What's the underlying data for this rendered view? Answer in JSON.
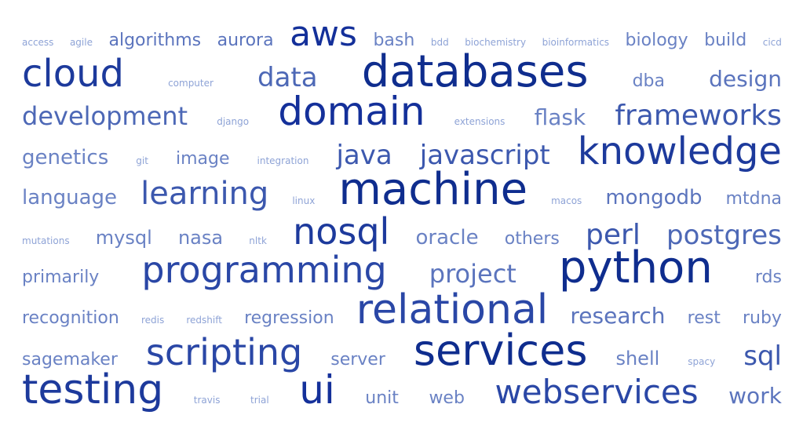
{
  "lines": [
    {
      "words": [
        {
          "text": "access",
          "size": 12,
          "color": "#8ea3d6"
        },
        {
          "text": "agile",
          "size": 12,
          "color": "#8ea3d6"
        },
        {
          "text": "algorithms",
          "size": 22,
          "color": "#5b74bd"
        },
        {
          "text": "aurora",
          "size": 22,
          "color": "#5b74bd"
        },
        {
          "text": "aws",
          "size": 44,
          "color": "#14309a"
        },
        {
          "text": "bash",
          "size": 22,
          "color": "#6a82c4"
        },
        {
          "text": "bdd",
          "size": 12,
          "color": "#8ea3d6"
        },
        {
          "text": "biochemistry",
          "size": 12,
          "color": "#8ea3d6"
        },
        {
          "text": "bioinformatics",
          "size": 12,
          "color": "#8ea3d6"
        },
        {
          "text": "biology",
          "size": 22,
          "color": "#6a82c4"
        },
        {
          "text": "build",
          "size": 22,
          "color": "#6a82c4"
        },
        {
          "text": "cicd",
          "size": 12,
          "color": "#8ea3d6"
        }
      ]
    },
    {
      "words": [
        {
          "text": "cloud",
          "size": 48,
          "color": "#1d3a9c"
        },
        {
          "text": "computer",
          "size": 12,
          "color": "#8ea3d6"
        },
        {
          "text": "data",
          "size": 34,
          "color": "#4d68b6"
        },
        {
          "text": "databases",
          "size": 56,
          "color": "#0f2d8e"
        },
        {
          "text": "dba",
          "size": 22,
          "color": "#6a82c4"
        },
        {
          "text": "design",
          "size": 28,
          "color": "#5b74bd"
        }
      ]
    },
    {
      "words": [
        {
          "text": "development",
          "size": 32,
          "color": "#4d68b6"
        },
        {
          "text": "django",
          "size": 12,
          "color": "#8ea3d6"
        },
        {
          "text": "domain",
          "size": 50,
          "color": "#14309a"
        },
        {
          "text": "extensions",
          "size": 12,
          "color": "#8ea3d6"
        },
        {
          "text": "flask",
          "size": 28,
          "color": "#6a82c4"
        },
        {
          "text": "frameworks",
          "size": 36,
          "color": "#3c58ae"
        }
      ]
    },
    {
      "words": [
        {
          "text": "genetics",
          "size": 26,
          "color": "#6a82c4"
        },
        {
          "text": "git",
          "size": 12,
          "color": "#8ea3d6"
        },
        {
          "text": "image",
          "size": 22,
          "color": "#6a82c4"
        },
        {
          "text": "integration",
          "size": 12,
          "color": "#8ea3d6"
        },
        {
          "text": "java",
          "size": 34,
          "color": "#3c58ae"
        },
        {
          "text": "javascript",
          "size": 34,
          "color": "#3c58ae"
        },
        {
          "text": "knowledge",
          "size": 48,
          "color": "#1d3a9c"
        }
      ]
    },
    {
      "words": [
        {
          "text": "language",
          "size": 26,
          "color": "#6a82c4"
        },
        {
          "text": "learning",
          "size": 40,
          "color": "#3c58ae"
        },
        {
          "text": "linux",
          "size": 12,
          "color": "#8ea3d6"
        },
        {
          "text": "machine",
          "size": 56,
          "color": "#0f2d8e"
        },
        {
          "text": "macos",
          "size": 12,
          "color": "#8ea3d6"
        },
        {
          "text": "mongodb",
          "size": 26,
          "color": "#5b74bd"
        },
        {
          "text": "mtdna",
          "size": 22,
          "color": "#6a82c4"
        }
      ]
    },
    {
      "words": [
        {
          "text": "mutations",
          "size": 12,
          "color": "#8ea3d6"
        },
        {
          "text": "mysql",
          "size": 24,
          "color": "#6a82c4"
        },
        {
          "text": "nasa",
          "size": 24,
          "color": "#6a82c4"
        },
        {
          "text": "nltk",
          "size": 12,
          "color": "#8ea3d6"
        },
        {
          "text": "nosql",
          "size": 46,
          "color": "#1d3a9c"
        },
        {
          "text": "oracle",
          "size": 26,
          "color": "#6a82c4"
        },
        {
          "text": "others",
          "size": 22,
          "color": "#6a82c4"
        },
        {
          "text": "perl",
          "size": 36,
          "color": "#3c58ae"
        },
        {
          "text": "postgres",
          "size": 34,
          "color": "#4d68b6"
        }
      ]
    },
    {
      "words": [
        {
          "text": "primarily",
          "size": 22,
          "color": "#6a82c4"
        },
        {
          "text": "programming",
          "size": 46,
          "color": "#2a47a6"
        },
        {
          "text": "project",
          "size": 32,
          "color": "#5b74bd"
        },
        {
          "text": "python",
          "size": 56,
          "color": "#0f2d8e"
        },
        {
          "text": "rds",
          "size": 22,
          "color": "#6a82c4"
        }
      ]
    },
    {
      "words": [
        {
          "text": "recognition",
          "size": 22,
          "color": "#6a82c4"
        },
        {
          "text": "redis",
          "size": 12,
          "color": "#8ea3d6"
        },
        {
          "text": "redshift",
          "size": 12,
          "color": "#8ea3d6"
        },
        {
          "text": "regression",
          "size": 22,
          "color": "#6a82c4"
        },
        {
          "text": "relational",
          "size": 52,
          "color": "#2a47a6"
        },
        {
          "text": "research",
          "size": 28,
          "color": "#5b74bd"
        },
        {
          "text": "rest",
          "size": 22,
          "color": "#6a82c4"
        },
        {
          "text": "ruby",
          "size": 22,
          "color": "#6a82c4"
        }
      ]
    },
    {
      "words": [
        {
          "text": "sagemaker",
          "size": 22,
          "color": "#6a82c4"
        },
        {
          "text": "scripting",
          "size": 46,
          "color": "#2a47a6"
        },
        {
          "text": "server",
          "size": 22,
          "color": "#6a82c4"
        },
        {
          "text": "services",
          "size": 54,
          "color": "#0f2d8e"
        },
        {
          "text": "shell",
          "size": 24,
          "color": "#6a82c4"
        },
        {
          "text": "spacy",
          "size": 12,
          "color": "#8ea3d6"
        },
        {
          "text": "sql",
          "size": 34,
          "color": "#3c58ae"
        }
      ]
    },
    {
      "words": [
        {
          "text": "testing",
          "size": 52,
          "color": "#1d3a9c"
        },
        {
          "text": "travis",
          "size": 12,
          "color": "#8ea3d6"
        },
        {
          "text": "trial",
          "size": 12,
          "color": "#8ea3d6"
        },
        {
          "text": "ui",
          "size": 50,
          "color": "#14309a"
        },
        {
          "text": "unit",
          "size": 22,
          "color": "#6a82c4"
        },
        {
          "text": "web",
          "size": 22,
          "color": "#6a82c4"
        },
        {
          "text": "webservices",
          "size": 42,
          "color": "#2a47a6"
        },
        {
          "text": "work",
          "size": 28,
          "color": "#5b74bd"
        }
      ]
    }
  ]
}
